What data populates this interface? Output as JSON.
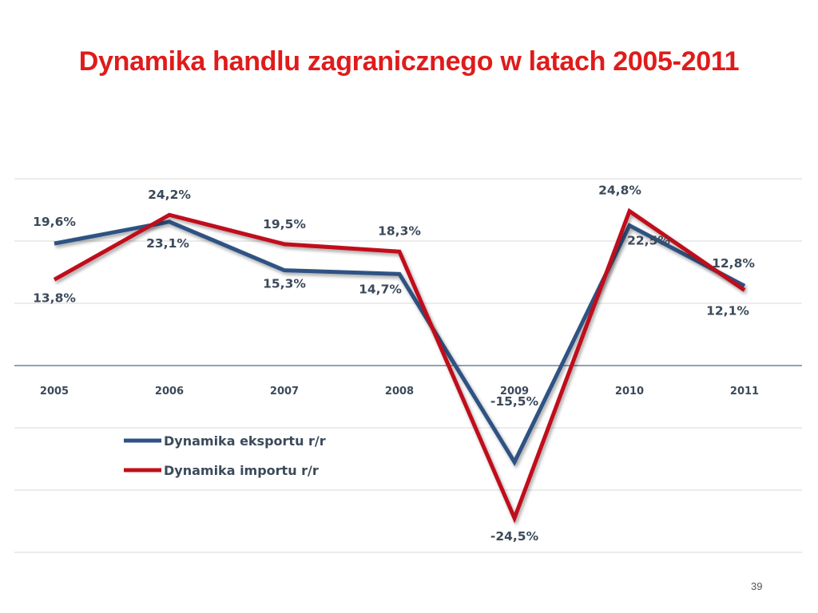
{
  "slide": {
    "title": "Dynamika handlu zagranicznego w latach 2005-2011",
    "page_number": "39"
  },
  "colors": {
    "export": "#2e5283",
    "import": "#c0101b",
    "title": "#e01b1b",
    "grid": "#d8d8d8",
    "axis": "#4f6a87",
    "label": "#3b4a5a"
  },
  "chart_data": {
    "type": "line",
    "title": "",
    "xlabel": "",
    "ylabel": "",
    "categories": [
      "2005",
      "2006",
      "2007",
      "2008",
      "2009",
      "2010",
      "2011"
    ],
    "ylim": [
      -30,
      30
    ],
    "grid": true,
    "legend_position": "bottom-left",
    "series": [
      {
        "name": "Dynamika eksportu r/r",
        "values": [
          19.6,
          23.1,
          15.3,
          14.7,
          -15.5,
          22.5,
          12.8
        ],
        "labels": [
          "19,6%",
          "23,1%",
          "15,3%",
          "14,7%",
          "-15,5%",
          "22,5%",
          "12,8%"
        ]
      },
      {
        "name": "Dynamika importu r/r",
        "values": [
          13.8,
          24.2,
          19.5,
          18.3,
          -24.5,
          24.8,
          12.1
        ],
        "labels": [
          "13,8%",
          "24,2%",
          "19,5%",
          "18,3%",
          "-24,5%",
          "24,8%",
          "12,1%"
        ]
      }
    ]
  }
}
